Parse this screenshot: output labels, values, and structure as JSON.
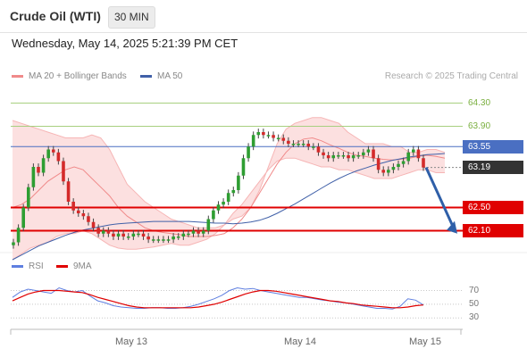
{
  "header": {
    "title": "Crude Oil (WTI)",
    "timeframe": "30 MIN"
  },
  "datetime": "Wednesday, May 14, 2025 5:21:39 PM CET",
  "legend": {
    "ma20_bb": "MA 20 + Bollinger Bands",
    "ma50": "MA 50"
  },
  "copyright": "Research © 2025 Trading Central",
  "rsi_legend": {
    "rsi": "RSI",
    "ma9": "9MA"
  },
  "colors": {
    "bullish": "#2e9e32",
    "bearish": "#d42a2a",
    "ma20": "#f08a8a",
    "bollinger": "#fbd3d3",
    "ma50": "#4060a8",
    "resistance": "#a8d080",
    "pivot": "#4a6fc2",
    "support": "#e00000",
    "current": "#333333",
    "arrow": "#2f5fa8",
    "rsi": "#5f7fe0",
    "rsi_ma": "#e00000"
  },
  "chart_data": [
    {
      "type": "candlestick",
      "title": "",
      "x_ticks": [
        "May 13",
        "May 14",
        "May 15"
      ],
      "y_range": [
        61.8,
        64.6
      ],
      "levels": [
        {
          "label": "64.30",
          "value": 64.3,
          "kind": "resistance"
        },
        {
          "label": "63.90",
          "value": 63.9,
          "kind": "resistance"
        },
        {
          "label": "63.55",
          "value": 63.55,
          "kind": "pivot"
        },
        {
          "label": "63.19",
          "value": 63.19,
          "kind": "current"
        },
        {
          "label": "62.50",
          "value": 62.5,
          "kind": "support"
        },
        {
          "label": "62.10",
          "value": 62.1,
          "kind": "support"
        }
      ],
      "ohlc_close": [
        61.9,
        62.15,
        62.5,
        62.85,
        63.2,
        63.1,
        63.35,
        63.5,
        63.45,
        63.3,
        62.95,
        62.6,
        62.45,
        62.4,
        62.35,
        62.25,
        62.15,
        62.05,
        62.1,
        62.05,
        62.0,
        62.05,
        62.0,
        62.0,
        62.05,
        62.05,
        62.0,
        61.95,
        61.95,
        61.95,
        61.95,
        61.95,
        62.0,
        62.0,
        62.05,
        62.05,
        62.1,
        62.05,
        62.1,
        62.3,
        62.45,
        62.55,
        62.6,
        62.75,
        62.8,
        63.05,
        63.35,
        63.55,
        63.75,
        63.8,
        63.75,
        63.75,
        63.7,
        63.7,
        63.65,
        63.6,
        63.6,
        63.6,
        63.6,
        63.55,
        63.55,
        63.45,
        63.4,
        63.35,
        63.4,
        63.4,
        63.4,
        63.35,
        63.4,
        63.4,
        63.45,
        63.5,
        63.35,
        63.15,
        63.1,
        63.15,
        63.2,
        63.25,
        63.3,
        63.45,
        63.5,
        63.35,
        63.19
      ],
      "bollinger_upper": [
        64.0,
        63.95,
        63.9,
        63.85,
        63.8,
        63.75,
        63.7,
        63.7,
        63.7,
        63.75,
        63.7,
        63.5,
        63.2,
        62.9,
        62.75,
        62.6,
        62.5,
        62.4,
        62.3,
        62.25,
        62.2,
        62.15,
        62.15,
        62.15,
        62.2,
        62.3,
        62.35,
        62.5,
        62.8,
        63.2,
        63.6,
        63.85,
        63.95,
        64.0,
        64.05,
        64.05,
        64.0,
        63.95,
        63.8,
        63.7,
        63.6,
        63.6,
        63.6,
        63.55,
        63.55,
        63.45,
        63.45,
        63.5,
        63.5,
        63.45
      ],
      "bollinger_lower": [
        61.6,
        61.7,
        61.8,
        61.85,
        61.9,
        62.0,
        62.05,
        62.05,
        62.1,
        62.05,
        61.95,
        61.85,
        61.8,
        61.78,
        61.78,
        61.8,
        61.82,
        61.85,
        61.88,
        61.85,
        61.85,
        61.9,
        61.95,
        62.05,
        62.2,
        62.4,
        62.55,
        62.75,
        62.95,
        63.15,
        63.3,
        63.35,
        63.35,
        63.3,
        63.25,
        63.2,
        63.2,
        63.15,
        63.15,
        63.1,
        63.05,
        63.0,
        63.0,
        63.0,
        63.05,
        63.1,
        63.15,
        63.15,
        63.1,
        63.1
      ],
      "ma20": [
        62.5,
        62.55,
        62.65,
        62.8,
        62.95,
        63.05,
        63.15,
        63.2,
        63.15,
        63.0,
        62.85,
        62.7,
        62.5,
        62.35,
        62.25,
        62.15,
        62.1,
        62.07,
        62.05,
        62.03,
        62.0,
        62.0,
        62.0,
        62.02,
        62.05,
        62.15,
        62.3,
        62.5,
        62.75,
        63.0,
        63.25,
        63.45,
        63.6,
        63.68,
        63.7,
        63.65,
        63.58,
        63.52,
        63.45,
        63.4,
        63.38,
        63.35,
        63.33,
        63.32,
        63.33,
        63.35,
        63.38,
        63.4,
        63.38,
        63.35
      ],
      "ma50": [
        61.6,
        61.68,
        61.76,
        61.84,
        61.9,
        61.96,
        62.02,
        62.07,
        62.11,
        62.14,
        62.17,
        62.2,
        62.22,
        62.23,
        62.24,
        62.25,
        62.26,
        62.26,
        62.26,
        62.26,
        62.26,
        62.25,
        62.24,
        62.23,
        62.23,
        62.22,
        62.23,
        62.25,
        62.28,
        62.33,
        62.4,
        62.48,
        62.56,
        62.65,
        62.74,
        62.83,
        62.92,
        63.0,
        63.07,
        63.13,
        63.18,
        63.23,
        63.27,
        63.31,
        63.34,
        63.37,
        63.39,
        63.41,
        63.42,
        63.43
      ]
    },
    {
      "type": "line",
      "title": "",
      "y_ticks": [
        70,
        50,
        30
      ],
      "y_range": [
        20,
        85
      ],
      "series": [
        {
          "name": "RSI",
          "values": [
            60,
            68,
            72,
            70,
            68,
            66,
            74,
            70,
            68,
            70,
            62,
            55,
            52,
            48,
            46,
            45,
            44,
            44,
            45,
            45,
            44,
            44,
            45,
            47,
            50,
            54,
            58,
            63,
            70,
            74,
            72,
            73,
            70,
            68,
            66,
            64,
            62,
            60,
            60,
            58,
            56,
            55,
            53,
            52,
            50,
            48,
            46,
            44,
            44,
            43,
            47,
            58,
            56,
            49
          ]
        },
        {
          "name": "9MA",
          "values": [
            55,
            60,
            65,
            68,
            70,
            70,
            70,
            69,
            68,
            67,
            64,
            60,
            57,
            54,
            51,
            48,
            46,
            45,
            45,
            45,
            45,
            45,
            45,
            45,
            46,
            48,
            50,
            53,
            57,
            61,
            65,
            68,
            70,
            70,
            69,
            67,
            65,
            63,
            61,
            59,
            57,
            55,
            54,
            52,
            51,
            49,
            48,
            47,
            46,
            45,
            45,
            46,
            48,
            49
          ]
        }
      ]
    }
  ]
}
